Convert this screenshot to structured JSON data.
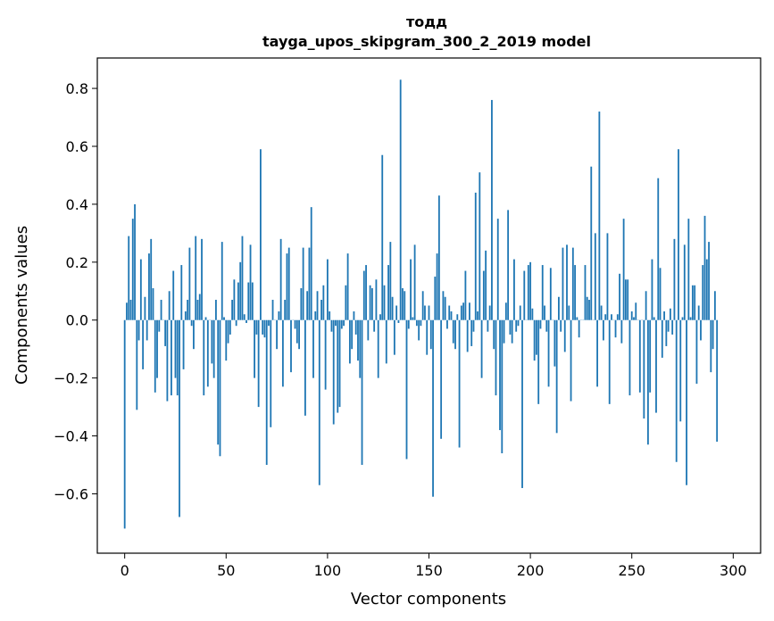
{
  "chart_data": {
    "type": "bar",
    "title": "тодд",
    "subtitle": "tayga_upos_skipgram_300_2_2019 model",
    "xlabel": "Vector components",
    "ylabel": "Components values",
    "xlim": [
      -13.5,
      313.5
    ],
    "ylim": [
      -0.805,
      0.905
    ],
    "xticks": [
      0,
      50,
      100,
      150,
      200,
      250,
      300
    ],
    "xtick_labels": [
      "0",
      "50",
      "100",
      "150",
      "200",
      "250",
      "300"
    ],
    "yticks": [
      -0.6,
      -0.4,
      -0.2,
      0.0,
      0.2,
      0.4,
      0.6,
      0.8
    ],
    "ytick_labels": [
      "−0.6",
      "−0.4",
      "−0.2",
      "0.0",
      "0.2",
      "0.4",
      "0.6",
      "0.8"
    ],
    "bar_color": "#1f77b4",
    "values": [
      -0.72,
      0.06,
      0.29,
      0.07,
      0.35,
      0.4,
      -0.31,
      -0.07,
      0.21,
      -0.17,
      0.08,
      -0.07,
      0.23,
      0.28,
      0.11,
      -0.25,
      -0.2,
      -0.04,
      0.07,
      0.0,
      -0.09,
      -0.28,
      0.1,
      -0.26,
      0.17,
      -0.2,
      -0.26,
      -0.68,
      0.19,
      -0.17,
      0.03,
      0.07,
      0.25,
      -0.02,
      -0.1,
      0.29,
      0.07,
      0.09,
      0.28,
      -0.26,
      0.01,
      -0.23,
      0.0,
      -0.15,
      -0.2,
      0.07,
      -0.43,
      -0.47,
      0.27,
      0.01,
      -0.14,
      -0.08,
      -0.05,
      0.07,
      0.14,
      -0.02,
      0.13,
      0.2,
      0.29,
      0.02,
      -0.01,
      0.13,
      0.26,
      0.13,
      -0.2,
      -0.05,
      -0.3,
      0.59,
      -0.05,
      -0.06,
      -0.5,
      -0.02,
      -0.37,
      0.07,
      0.0,
      -0.1,
      0.03,
      0.28,
      -0.23,
      0.07,
      0.23,
      0.25,
      -0.18,
      0.0,
      -0.03,
      -0.08,
      -0.1,
      0.11,
      0.25,
      -0.33,
      0.1,
      0.25,
      0.39,
      -0.2,
      0.03,
      0.1,
      -0.57,
      0.07,
      0.12,
      -0.24,
      0.21,
      0.03,
      -0.04,
      -0.36,
      -0.02,
      -0.32,
      -0.3,
      -0.03,
      -0.02,
      0.12,
      0.23,
      -0.15,
      -0.1,
      0.03,
      -0.05,
      -0.14,
      -0.2,
      -0.5,
      0.17,
      0.19,
      -0.07,
      0.12,
      0.11,
      -0.04,
      0.14,
      -0.2,
      0.02,
      0.57,
      0.12,
      -0.15,
      0.19,
      0.27,
      0.08,
      -0.12,
      0.05,
      -0.01,
      0.83,
      0.11,
      0.1,
      -0.48,
      -0.03,
      0.21,
      0.01,
      0.26,
      -0.02,
      -0.07,
      -0.02,
      0.1,
      0.05,
      -0.12,
      0.05,
      -0.1,
      -0.61,
      0.15,
      0.23,
      0.43,
      -0.41,
      0.1,
      0.08,
      -0.03,
      0.05,
      0.03,
      -0.08,
      -0.1,
      0.02,
      -0.44,
      0.05,
      0.06,
      0.17,
      -0.11,
      0.06,
      -0.09,
      -0.04,
      0.44,
      0.03,
      0.51,
      -0.2,
      0.17,
      0.24,
      -0.04,
      0.05,
      0.76,
      -0.1,
      -0.26,
      0.35,
      -0.38,
      -0.46,
      -0.08,
      0.06,
      0.38,
      -0.05,
      -0.08,
      0.21,
      -0.04,
      -0.02,
      0.05,
      -0.58,
      0.17,
      0.0,
      0.19,
      0.2,
      0.04,
      -0.14,
      -0.12,
      -0.29,
      -0.03,
      0.19,
      0.05,
      -0.04,
      -0.23,
      0.18,
      0.0,
      -0.16,
      -0.39,
      0.08,
      -0.04,
      0.25,
      -0.11,
      0.26,
      0.05,
      -0.28,
      0.25,
      0.19,
      0.01,
      -0.06,
      0.0,
      0.0,
      0.19,
      0.08,
      0.07,
      0.53,
      0.0,
      0.3,
      -0.23,
      0.72,
      0.05,
      -0.07,
      0.02,
      0.3,
      -0.29,
      0.02,
      0.0,
      -0.06,
      0.02,
      0.16,
      -0.08,
      0.35,
      0.14,
      0.14,
      -0.26,
      0.03,
      0.01,
      0.06,
      0.0,
      -0.25,
      0.0,
      -0.34,
      0.1,
      -0.43,
      -0.25,
      0.21,
      0.01,
      -0.32,
      0.49,
      0.18,
      -0.13,
      0.03,
      -0.09,
      -0.04,
      0.04,
      -0.05,
      0.28,
      -0.49,
      0.59,
      -0.35,
      0.01,
      0.26,
      -0.57,
      0.35,
      0.01,
      0.12,
      0.12,
      -0.22,
      0.05,
      -0.07,
      0.19,
      0.36,
      0.21,
      0.27,
      -0.18,
      -0.1,
      0.1,
      -0.42
    ]
  }
}
